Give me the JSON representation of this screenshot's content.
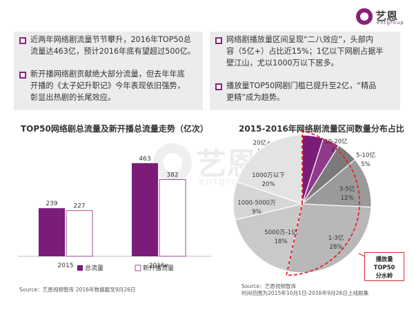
{
  "brand": {
    "name": "艺恩",
    "sub": "entgroup",
    "color": "#8a1f7a"
  },
  "left_panel": {
    "bullets": [
      {
        "lines": [
          "近两年网络剧流量节节攀升，2016年TOP50总",
          "流量达463亿，预计2016年底有望超过500亿。"
        ]
      },
      {
        "lines": [
          "新开播网络剧贡献绝大部分流量，但去年年底",
          "开播的《太子妃升职记》今年表现依旧强势，",
          "彰显出热剧的长尾效应。"
        ]
      }
    ]
  },
  "right_panel": {
    "bullets": [
      {
        "lines": [
          "网络剧播放量区间呈现“二八效应”，头部内",
          "容（5亿+）占比近15%；1亿以下网剧占据半",
          "壁江山，尤以1000万以下居多。"
        ]
      },
      {
        "lines": [
          "播放量TOP50网剧门槛已提升至2亿，“精品",
          "更精”成为趋势。"
        ]
      }
    ]
  },
  "chart_data": [
    {
      "type": "bar",
      "title": "TOP50网络剧总流量及新开播总流量走势（亿次）",
      "categories": [
        "2015",
        "2016e"
      ],
      "series": [
        {
          "name": "总流量",
          "values": [
            239,
            463
          ],
          "color": "#7b1c78"
        },
        {
          "name": "新开播流量",
          "values": [
            227,
            382
          ],
          "color": "#ffffff"
        }
      ],
      "ylim": [
        0,
        500
      ],
      "legend": "bottom",
      "source": "Source：艺恩视频智库  2016年数据截至9月26日"
    },
    {
      "type": "pie",
      "title": "2015-2016年网络剧流量区间数量分布占比",
      "slices": [
        {
          "label": "20亿+",
          "value": 5,
          "text": "5%",
          "color": "#7b1c78"
        },
        {
          "label": "10-20亿",
          "value": 4,
          "text": "4%",
          "color": "#8f3a8a"
        },
        {
          "label": "5-10亿",
          "value": 5,
          "text": "5%",
          "color": "#7a7a7a"
        },
        {
          "label": "3-5亿",
          "value": 12,
          "text": "12%",
          "color": "#9a9a9a"
        },
        {
          "label": "1-3亿",
          "value": 28,
          "text": "28%",
          "color": "#b8b8b8"
        },
        {
          "label": "5000万-1亿",
          "value": 18,
          "text": "18%",
          "color": "#c9c9c9"
        },
        {
          "label": "1000-5000万",
          "value": 9,
          "text": "9%",
          "color": "#d6d6d6"
        },
        {
          "label": "1000万以下",
          "value": 20,
          "text": "20%",
          "color": "#e3e3e3"
        }
      ],
      "callout": [
        "播放量",
        "TOP50",
        "分水岭"
      ],
      "callout_color": "#e0242a",
      "source": [
        "Source：艺恩视频智库",
        "时间范围为2015年10月1日-2016年9月26日上线剧集"
      ]
    }
  ]
}
